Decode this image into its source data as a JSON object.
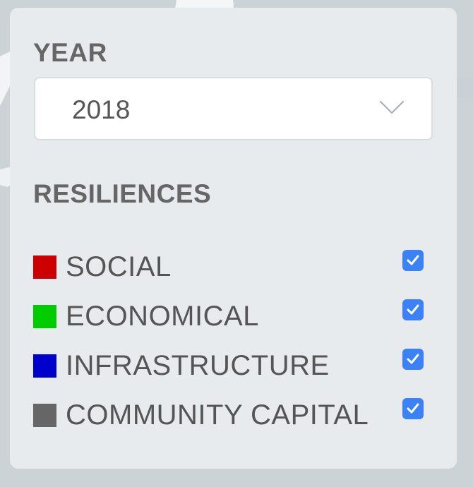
{
  "filters": {
    "year": {
      "title": "YEAR",
      "selected": "2018"
    },
    "resiliences": {
      "title": "RESILIENCES",
      "items": [
        {
          "label": "SOCIAL",
          "color": "#cc0000",
          "checked": true
        },
        {
          "label": "ECONOMICAL",
          "color": "#00cc00",
          "checked": true
        },
        {
          "label": "INFRASTRUCTURE",
          "color": "#0000cc",
          "checked": true
        },
        {
          "label": "COMMUNITY CAPITAL",
          "color": "#666666",
          "checked": true
        }
      ]
    }
  },
  "icons": {
    "dropdown": "chevron-down-icon",
    "check": "checkmark-icon"
  },
  "colors": {
    "checkbox": "#3b82f6"
  }
}
